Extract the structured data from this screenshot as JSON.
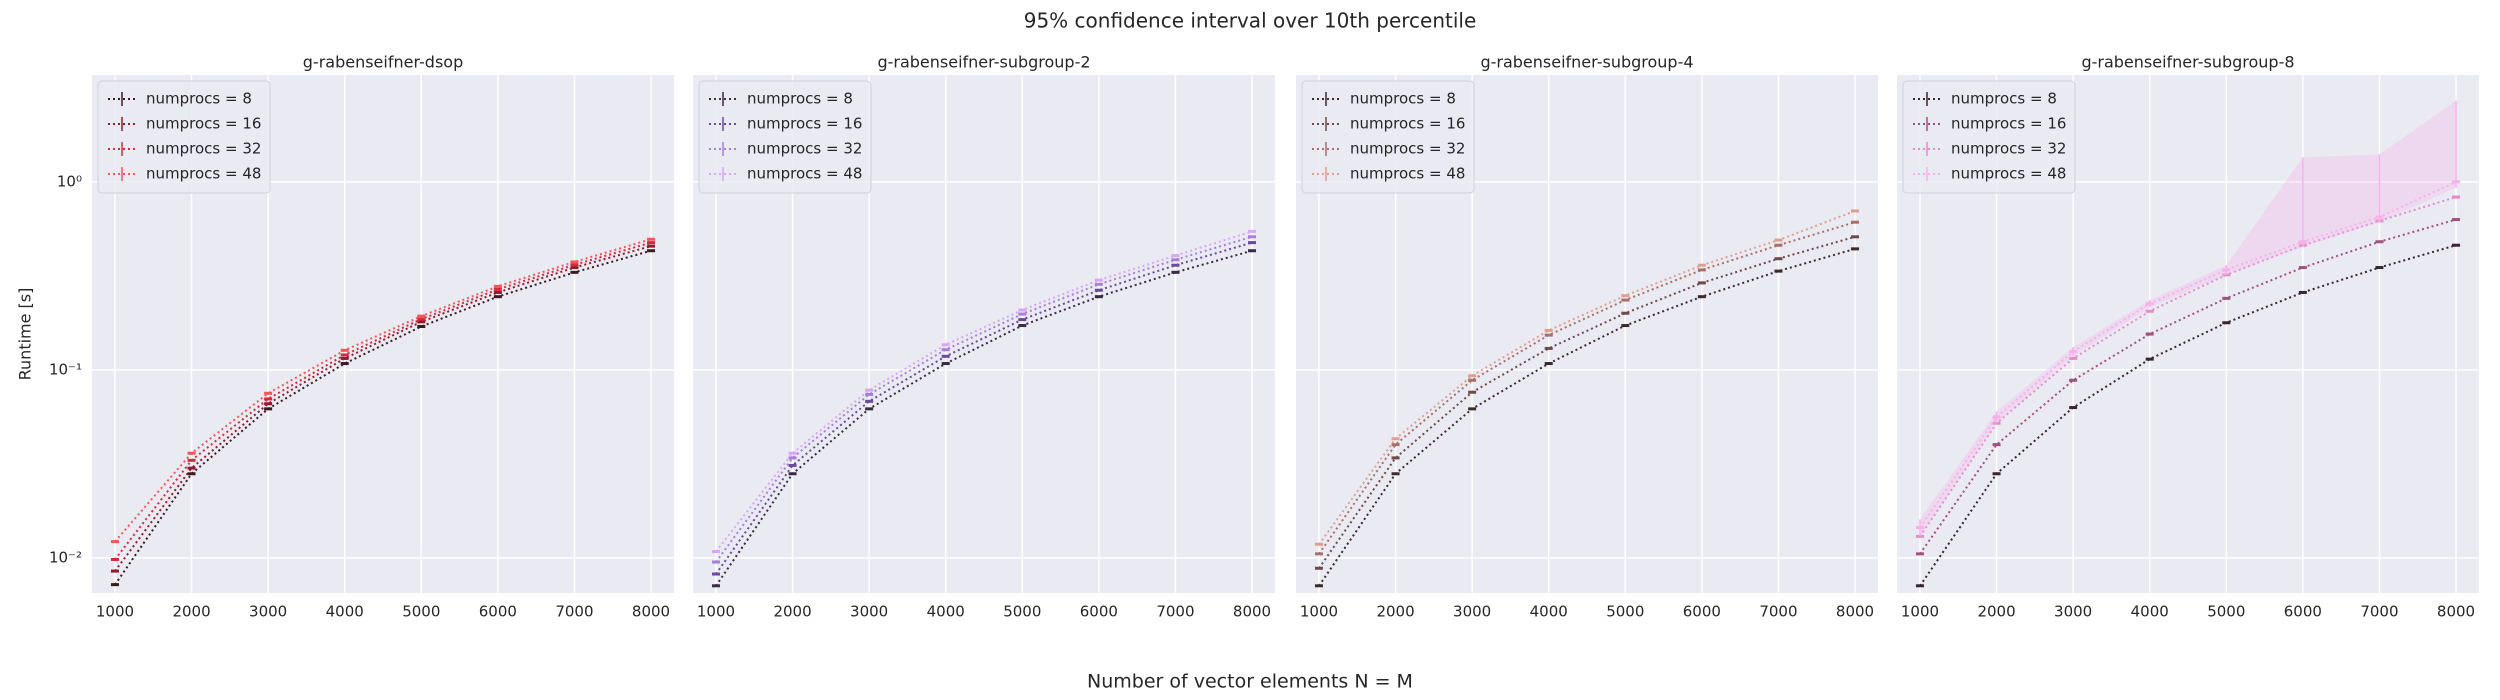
{
  "title": "95% confidence interval over 10th percentile",
  "xlabel": "Number of vector elements N = M",
  "chart_data": [
    {
      "type": "line",
      "title": "g-rabenseifner-dsop",
      "ylabel": "Runtime [s]",
      "yscale": "log",
      "grid": true,
      "legend": "upper left",
      "x": [
        1000,
        2000,
        3000,
        4000,
        5000,
        6000,
        7000,
        8000
      ],
      "xlim": [
        700,
        8300
      ],
      "xticks": [
        1000,
        2000,
        3000,
        4000,
        5000,
        6000,
        7000,
        8000
      ],
      "ylim": [
        0.0065,
        3.7
      ],
      "yticks": [
        {
          "value": 0.01,
          "label": "10⁻²"
        },
        {
          "value": 0.1,
          "label": "10⁻¹"
        },
        {
          "value": 1,
          "label": "10⁰"
        }
      ],
      "series": [
        {
          "name": "numprocs = 8",
          "color": "#3d1a20",
          "values": [
            0.0072,
            0.028,
            0.062,
            0.108,
            0.17,
            0.245,
            0.33,
            0.43
          ]
        },
        {
          "name": "numprocs = 16",
          "color": "#8e1c2e",
          "values": [
            0.0085,
            0.03,
            0.066,
            0.115,
            0.18,
            0.258,
            0.35,
            0.455
          ]
        },
        {
          "name": "numprocs = 32",
          "color": "#d42a3c",
          "values": [
            0.0098,
            0.033,
            0.07,
            0.12,
            0.186,
            0.268,
            0.362,
            0.475
          ]
        },
        {
          "name": "numprocs = 48",
          "color": "#f2585a",
          "values": [
            0.0122,
            0.036,
            0.075,
            0.127,
            0.193,
            0.278,
            0.375,
            0.495
          ]
        }
      ]
    },
    {
      "type": "line",
      "title": "g-rabenseifner-subgroup-2",
      "yscale": "log",
      "grid": true,
      "legend": "upper left",
      "x": [
        1000,
        2000,
        3000,
        4000,
        5000,
        6000,
        7000,
        8000
      ],
      "xlim": [
        700,
        8300
      ],
      "xticks": [
        1000,
        2000,
        3000,
        4000,
        5000,
        6000,
        7000,
        8000
      ],
      "ylim": [
        0.0065,
        3.7
      ],
      "yticks": [
        0.01,
        0.1,
        1
      ],
      "series": [
        {
          "name": "numprocs = 8",
          "color": "#3a2a45",
          "values": [
            0.0071,
            0.028,
            0.062,
            0.108,
            0.172,
            0.245,
            0.33,
            0.43
          ]
        },
        {
          "name": "numprocs = 16",
          "color": "#6a4a9a",
          "values": [
            0.0082,
            0.031,
            0.068,
            0.118,
            0.185,
            0.265,
            0.36,
            0.475
          ]
        },
        {
          "name": "numprocs = 32",
          "color": "#a77fd8",
          "values": [
            0.0095,
            0.034,
            0.074,
            0.128,
            0.198,
            0.285,
            0.385,
            0.51
          ]
        },
        {
          "name": "numprocs = 48",
          "color": "#d9a6f5",
          "values": [
            0.0108,
            0.036,
            0.078,
            0.136,
            0.208,
            0.3,
            0.405,
            0.545
          ]
        }
      ]
    },
    {
      "type": "line",
      "title": "g-rabenseifner-subgroup-4",
      "yscale": "log",
      "grid": true,
      "legend": "upper left",
      "x": [
        1000,
        2000,
        3000,
        4000,
        5000,
        6000,
        7000,
        8000
      ],
      "xlim": [
        700,
        8300
      ],
      "xticks": [
        1000,
        2000,
        3000,
        4000,
        5000,
        6000,
        7000,
        8000
      ],
      "ylim": [
        0.0065,
        3.7
      ],
      "yticks": [
        0.01,
        0.1,
        1
      ],
      "series": [
        {
          "name": "numprocs = 8",
          "color": "#3d2a2c",
          "values": [
            0.0071,
            0.028,
            0.062,
            0.108,
            0.172,
            0.245,
            0.335,
            0.44
          ]
        },
        {
          "name": "numprocs = 16",
          "color": "#6e4a48",
          "values": [
            0.0088,
            0.034,
            0.076,
            0.13,
            0.2,
            0.29,
            0.39,
            0.51
          ]
        },
        {
          "name": "numprocs = 32",
          "color": "#a8706a",
          "values": [
            0.0105,
            0.04,
            0.088,
            0.153,
            0.235,
            0.34,
            0.46,
            0.61
          ]
        },
        {
          "name": "numprocs = 48",
          "color": "#e0a090",
          "values": [
            0.0118,
            0.043,
            0.093,
            0.162,
            0.248,
            0.36,
            0.49,
            0.7
          ]
        }
      ]
    },
    {
      "type": "line",
      "title": "g-rabenseifner-subgroup-8",
      "yscale": "log",
      "grid": true,
      "legend": "upper left",
      "x": [
        1000,
        2000,
        3000,
        4000,
        5000,
        6000,
        7000,
        8000
      ],
      "xlim": [
        700,
        8300
      ],
      "xticks": [
        1000,
        2000,
        3000,
        4000,
        5000,
        6000,
        7000,
        8000
      ],
      "ylim": [
        0.0065,
        3.7
      ],
      "yticks": [
        0.01,
        0.1,
        1
      ],
      "series": [
        {
          "name": "numprocs = 8",
          "color": "#3b2433",
          "values": [
            0.0071,
            0.028,
            0.063,
            0.114,
            0.178,
            0.258,
            0.35,
            0.46
          ]
        },
        {
          "name": "numprocs = 16",
          "color": "#a0527f",
          "values": [
            0.0105,
            0.04,
            0.088,
            0.155,
            0.24,
            0.35,
            0.48,
            0.63
          ]
        },
        {
          "name": "numprocs = 32",
          "color": "#e38bcb",
          "values": [
            0.013,
            0.052,
            0.115,
            0.205,
            0.32,
            0.46,
            0.62,
            0.83
          ]
        },
        {
          "name": "numprocs = 48",
          "color": "#f7b0ec",
          "values": [
            0.0145,
            0.056,
            0.125,
            0.225,
            0.34,
            0.48,
            0.65,
            1.0
          ],
          "ci_low": [
            0.013,
            0.052,
            0.118,
            0.215,
            0.32,
            0.45,
            0.61,
            0.93
          ],
          "ci_high": [
            0.016,
            0.06,
            0.132,
            0.235,
            0.36,
            1.35,
            1.4,
            2.7
          ]
        }
      ]
    }
  ]
}
